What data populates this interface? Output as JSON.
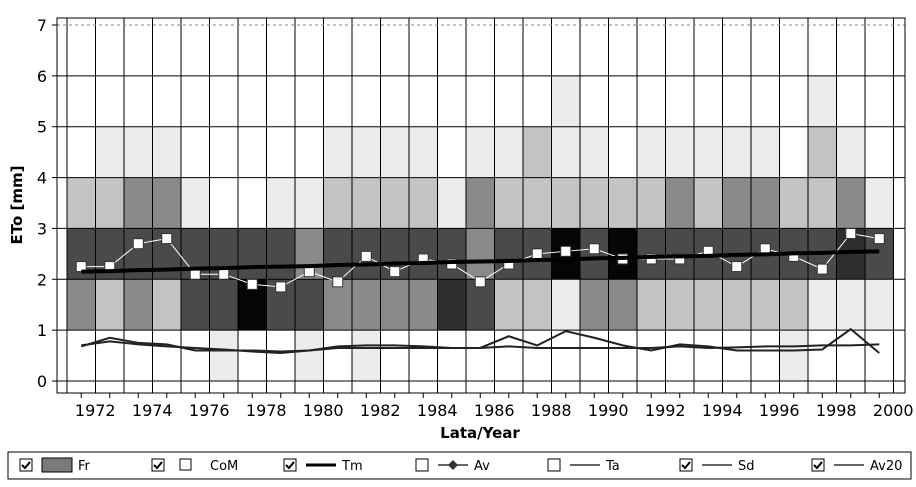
{
  "chart_data": {
    "type": "heatmap-lines",
    "y_label": "ETo [mm]",
    "x_label": "Lata/Year",
    "categories": [
      "1972",
      null,
      "1974",
      null,
      "1976",
      null,
      "1978",
      null,
      "1980",
      null,
      "1982",
      null,
      "1984",
      null,
      "1986",
      null,
      "1988",
      null,
      "1990",
      null,
      "1992",
      null,
      "1994",
      null,
      "1996",
      null,
      "1998",
      null,
      "2000"
    ],
    "ylim": [
      0,
      7
    ],
    "yticks": [
      0,
      1,
      2,
      3,
      4,
      5,
      6,
      7
    ],
    "grid": true,
    "fr_colors": [
      "#ffffff",
      "#ececec",
      "#c4c4c4",
      "#8a8a8a",
      "#4a4a4a",
      "#2e2e2e",
      "#050505"
    ],
    "fr_levels": [
      [
        0,
        3,
        4,
        2,
        0,
        0,
        0
      ],
      [
        0,
        2,
        4,
        2,
        1,
        0,
        0
      ],
      [
        0,
        3,
        4,
        3,
        1,
        0,
        0
      ],
      [
        0,
        2,
        4,
        3,
        1,
        0,
        0
      ],
      [
        0,
        4,
        4,
        1,
        0,
        0,
        0
      ],
      [
        1,
        4,
        4,
        0,
        0,
        0,
        0
      ],
      [
        0,
        6,
        4,
        0,
        0,
        0,
        0
      ],
      [
        0,
        4,
        4,
        1,
        0,
        0,
        0
      ],
      [
        1,
        4,
        3,
        1,
        0,
        0,
        0
      ],
      [
        0,
        3,
        4,
        2,
        1,
        0,
        0
      ],
      [
        1,
        3,
        4,
        2,
        1,
        0,
        0
      ],
      [
        0,
        3,
        4,
        2,
        1,
        0,
        0
      ],
      [
        0,
        3,
        4,
        2,
        1,
        0,
        0
      ],
      [
        0,
        5,
        4,
        1,
        0,
        0,
        0
      ],
      [
        0,
        4,
        3,
        3,
        1,
        0,
        0
      ],
      [
        0,
        2,
        4,
        2,
        1,
        0,
        0
      ],
      [
        0,
        2,
        4,
        2,
        2,
        0,
        0
      ],
      [
        0,
        1,
        6,
        2,
        1,
        1,
        0
      ],
      [
        0,
        3,
        4,
        2,
        1,
        0,
        0
      ],
      [
        0,
        3,
        6,
        2,
        0,
        0,
        0
      ],
      [
        0,
        2,
        4,
        2,
        1,
        0,
        0
      ],
      [
        0,
        2,
        4,
        3,
        1,
        0,
        0
      ],
      [
        0,
        2,
        4,
        2,
        1,
        0,
        0
      ],
      [
        0,
        2,
        4,
        3,
        1,
        0,
        0
      ],
      [
        0,
        2,
        4,
        3,
        1,
        0,
        0
      ],
      [
        1,
        2,
        4,
        2,
        0,
        0,
        0
      ],
      [
        0,
        1,
        4,
        2,
        2,
        1,
        0
      ],
      [
        0,
        1,
        5,
        3,
        1,
        0,
        0
      ],
      [
        0,
        1,
        4,
        1,
        0,
        0,
        0
      ]
    ],
    "series": [
      {
        "name": "CoM",
        "color": "#ffffff",
        "values": [
          2.25,
          2.25,
          2.7,
          2.8,
          2.1,
          2.1,
          1.9,
          1.85,
          2.15,
          1.95,
          2.45,
          2.15,
          2.4,
          2.3,
          1.95,
          2.3,
          2.5,
          2.55,
          2.6,
          2.4,
          2.4,
          2.4,
          2.55,
          2.25,
          2.6,
          2.45,
          2.2,
          2.9,
          2.8
        ]
      },
      {
        "name": "Tm",
        "color": "#000000",
        "values": [
          2.15,
          2.16,
          2.18,
          2.19,
          2.21,
          2.22,
          2.24,
          2.25,
          2.26,
          2.28,
          2.29,
          2.31,
          2.32,
          2.34,
          2.35,
          2.36,
          2.38,
          2.39,
          2.41,
          2.42,
          2.44,
          2.45,
          2.46,
          2.48,
          2.49,
          2.51,
          2.52,
          2.54,
          2.55
        ]
      },
      {
        "name": "Sd",
        "color": "#222222",
        "values": [
          0.68,
          0.85,
          0.75,
          0.72,
          0.6,
          0.6,
          0.6,
          0.58,
          0.6,
          0.68,
          0.7,
          0.7,
          0.68,
          0.65,
          0.65,
          0.88,
          0.7,
          0.98,
          0.85,
          0.7,
          0.6,
          0.72,
          0.68,
          0.6,
          0.6,
          0.6,
          0.62,
          1.02,
          0.55
        ]
      },
      {
        "name": "Av20",
        "color": "#222222",
        "values": [
          0.7,
          0.78,
          0.72,
          0.68,
          0.65,
          0.62,
          0.58,
          0.55,
          0.6,
          0.65,
          0.65,
          0.65,
          0.65,
          0.65,
          0.65,
          0.68,
          0.65,
          0.65,
          0.65,
          0.65,
          0.65,
          0.68,
          0.65,
          0.66,
          0.68,
          0.68,
          0.7,
          0.7,
          0.72
        ]
      }
    ],
    "legend": [
      {
        "label": "Fr",
        "checked": true
      },
      {
        "label": "CoM",
        "checked": true
      },
      {
        "label": "Tm",
        "checked": true
      },
      {
        "label": "Av",
        "checked": false
      },
      {
        "label": "Ta",
        "checked": false
      },
      {
        "label": "Sd",
        "checked": true
      },
      {
        "label": "Av20",
        "checked": true
      }
    ]
  }
}
